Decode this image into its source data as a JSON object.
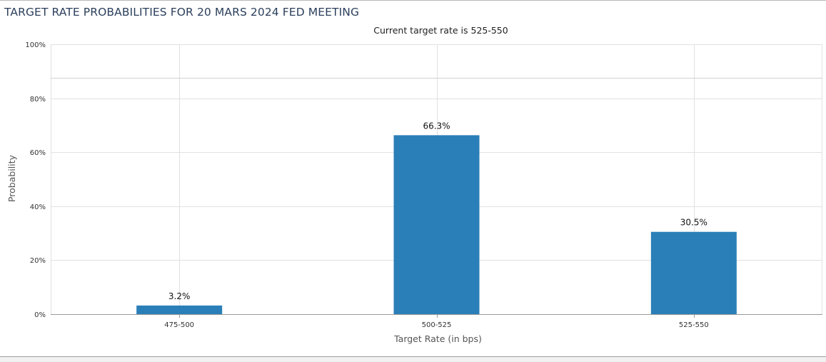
{
  "header": {
    "title": "TARGET RATE PROBABILITIES FOR 20 MARS 2024 FED MEETING"
  },
  "chart_data": {
    "type": "bar",
    "title": "TARGET RATE PROBABILITIES FOR 20 MARS 2024 FED MEETING",
    "subtitle": "Current target rate is 525-550",
    "xlabel": "Target Rate (in bps)",
    "ylabel": "Probability",
    "categories": [
      "475-500",
      "500-525",
      "525-550"
    ],
    "values": [
      3.2,
      66.3,
      30.5
    ],
    "value_labels": [
      "3.2%",
      "66.3%",
      "30.5%"
    ],
    "ylim": [
      0,
      100
    ],
    "yticks": [
      0,
      20,
      40,
      60,
      80,
      100
    ],
    "ytick_labels": [
      "0%",
      "20%",
      "40%",
      "60%",
      "80%",
      "100%"
    ],
    "grid": true,
    "legend": "none",
    "colors": {
      "bar": "#2a7fb8",
      "grid": "#e1e1e1",
      "axis": "#9a9a9a"
    }
  }
}
